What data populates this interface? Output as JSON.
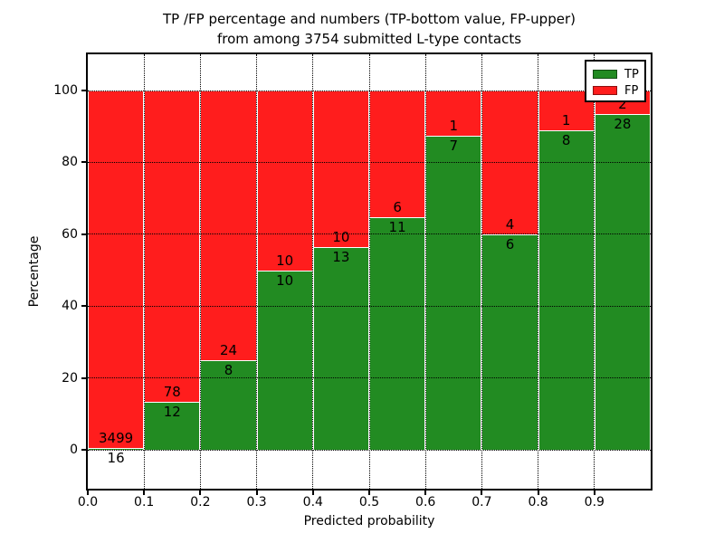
{
  "title": {
    "line1": "TP /FP percentage and numbers (TP-bottom value, FP-upper)",
    "line2": "from among 3754 submitted L-type contacts"
  },
  "axes": {
    "xlabel": "Predicted probability",
    "ylabel": "Percentage"
  },
  "chart_data": {
    "type": "bar",
    "stacked": true,
    "normalized_to_percent": true,
    "title": "TP /FP percentage and numbers (TP-bottom value, FP-upper) from among 3754 submitted L-type contacts",
    "xlabel": "Predicted probability",
    "ylabel": "Percentage",
    "total_contacts": 3754,
    "bin_edges": [
      0.0,
      0.1,
      0.2,
      0.3,
      0.4,
      0.5,
      0.6,
      0.7,
      0.8,
      0.9,
      1.0
    ],
    "xticks": [
      "0.0",
      "0.1",
      "0.2",
      "0.3",
      "0.4",
      "0.5",
      "0.6",
      "0.7",
      "0.8",
      "0.9"
    ],
    "yticks": [
      0,
      20,
      40,
      60,
      80,
      100
    ],
    "ylim": [
      -11,
      110
    ],
    "grid": true,
    "grid_style": "dotted",
    "legend_position": "upper right",
    "series": [
      {
        "name": "TP",
        "color": "#228b22",
        "counts": [
          16,
          12,
          8,
          10,
          13,
          11,
          7,
          6,
          8,
          28
        ]
      },
      {
        "name": "FP",
        "color": "#ff1d1d",
        "counts": [
          3499,
          78,
          24,
          10,
          10,
          6,
          1,
          4,
          1,
          2
        ]
      }
    ],
    "tp_percent_per_bin": [
      0.46,
      13.33,
      25.0,
      50.0,
      56.52,
      64.71,
      87.5,
      60.0,
      88.89,
      93.33
    ],
    "annotation_rule": "TP count printed just below each TP/FP boundary, FP count just above it"
  }
}
